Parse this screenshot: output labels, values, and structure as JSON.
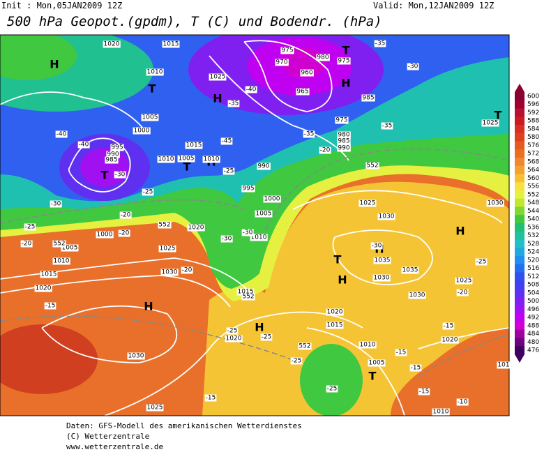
{
  "header": {
    "init": "Init : Mon,05JAN2009 12Z",
    "valid": "Valid: Mon,12JAN2009 12Z",
    "title": "500 hPa Geopot.(gpdm), T (C) und Bodendr. (hPa)"
  },
  "colorbar": {
    "values": [
      600,
      596,
      592,
      588,
      584,
      580,
      576,
      572,
      568,
      564,
      560,
      556,
      552,
      548,
      544,
      540,
      536,
      532,
      528,
      524,
      520,
      516,
      512,
      508,
      504,
      500,
      496,
      492,
      488,
      484,
      480,
      476
    ],
    "colors": [
      "#8a0030",
      "#a00030",
      "#b81030",
      "#cc1a20",
      "#d83020",
      "#e04020",
      "#e45a20",
      "#ea7020",
      "#f08830",
      "#f5a030",
      "#f8c030",
      "#f8e040",
      "#e6f040",
      "#c0e830",
      "#80d830",
      "#40c840",
      "#20c070",
      "#20c0a0",
      "#20c0c8",
      "#20a8e0",
      "#2090f0",
      "#2070f0",
      "#3050f0",
      "#4040f0",
      "#6030f0",
      "#8020f0",
      "#a010f0",
      "#c000f0",
      "#d000d0",
      "#a000a0",
      "#700080",
      "#400060"
    ]
  },
  "map_labels": [
    "H",
    "T",
    "H",
    "T",
    "T",
    "H",
    "T",
    "H",
    "T",
    "H",
    "H",
    "T",
    "H",
    "H",
    "H",
    "T",
    "1020",
    "1015",
    "1010",
    "1025",
    "1005",
    "1000",
    "995",
    "990",
    "985",
    "1010",
    "1005",
    "1015",
    "1010",
    "990",
    "995",
    "1000",
    "1005",
    "1010",
    "1020",
    "1000",
    "1005",
    "1010",
    "1015",
    "1020",
    "1025",
    "1030",
    "1030",
    "1025",
    "1015",
    "1020",
    "1020",
    "1015",
    "1010",
    "1005",
    "1010",
    "1020",
    "1025",
    "1030",
    "1030",
    "1035",
    "1035",
    "1030",
    "1025",
    "1030",
    "975",
    "970",
    "980",
    "960",
    "965",
    "975",
    "985",
    "975",
    "980",
    "985",
    "990",
    "1025",
    "101",
    "-35",
    "-30",
    "-40",
    "-35",
    "-35",
    "-40",
    "-40",
    "-35",
    "-20",
    "-45",
    "-25",
    "-30",
    "-25",
    "-30",
    "-20",
    "-25",
    "-20",
    "-20",
    "-30",
    "-30",
    "-20",
    "-15",
    "-25",
    "-25",
    "-25",
    "-25",
    "-15",
    "-15",
    "-15",
    "-20",
    "-25",
    "-30",
    "-15",
    "-10",
    "-15",
    "552",
    "552",
    "552",
    "552",
    "552"
  ],
  "footer": [
    "Daten: GFS-Modell des amerikanischen Wetterdienstes",
    "(C) Wetterzentrale",
    "www.wetterzentrale.de"
  ]
}
